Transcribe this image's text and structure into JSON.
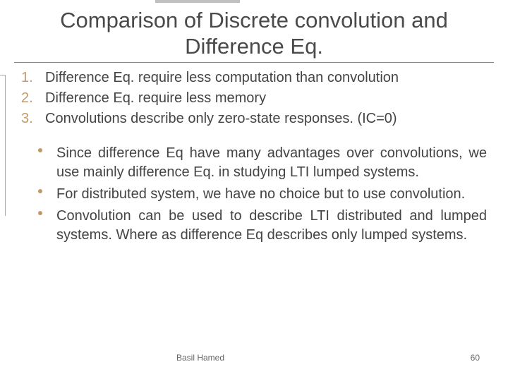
{
  "title": "Comparison of Discrete convolution and Difference Eq.",
  "numbered": [
    {
      "marker": "1.",
      "text": "Difference Eq. require less computation than convolution"
    },
    {
      "marker": "2.",
      "text": "Difference Eq. require less memory"
    },
    {
      "marker": "3.",
      "text": "Convolutions describe only zero-state responses. (IC=0)"
    }
  ],
  "bullets": [
    "Since difference Eq have many advantages over convolutions, we use mainly difference Eq. in studying LTI lumped systems.",
    "For distributed system, we have no choice but to use convolution.",
    "Convolution can be used to describe LTI distributed and lumped systems. Where as difference Eq describes only lumped systems."
  ],
  "footer": {
    "author": "Basil Hamed",
    "page": "60"
  },
  "colors": {
    "accent": "#c19a6b",
    "text": "#444444",
    "title": "#4a4a4a"
  }
}
